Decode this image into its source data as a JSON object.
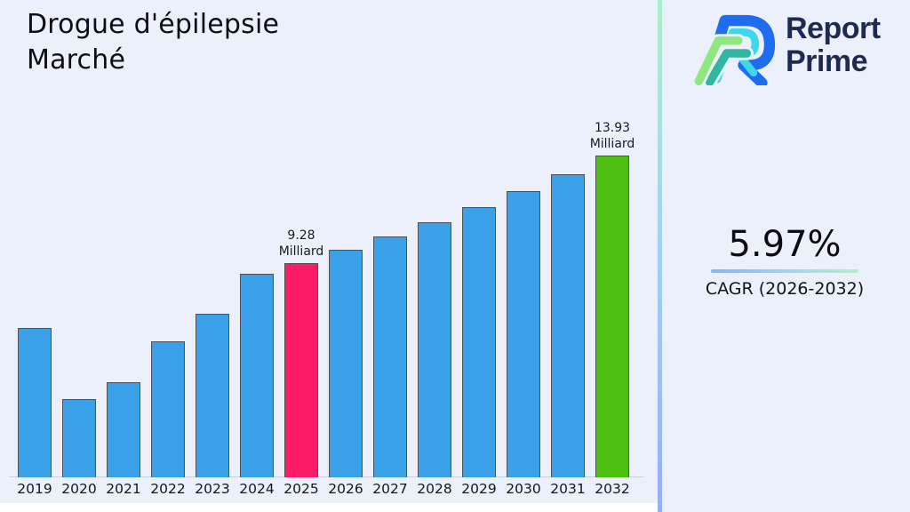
{
  "title": {
    "line1": "Drogue d'épilepsie",
    "line2": "Marché"
  },
  "logo": {
    "brand_line1": "Report",
    "brand_line2": "Prime"
  },
  "cagr": {
    "value": "5.97%",
    "label": "CAGR (2026-2032)"
  },
  "colors": {
    "background": "#ebf0fa",
    "bar_default": "#3aa0e8",
    "bar_highlight_current": "#fc1b66",
    "bar_highlight_final": "#4cbf10",
    "bar_border": "#4e5157",
    "logo_navy": "#1e2a52",
    "logo_blue": "#1f6cf3",
    "logo_cyan": "#3fd8e8",
    "logo_teal": "#2eb8a2",
    "logo_light_green": "#8fe87f",
    "divider_top": "#a9efca",
    "divider_bottom": "#97aef7"
  },
  "chart_data": {
    "type": "bar",
    "title": "Drogue d'épilepsie Marché",
    "xlabel": "",
    "ylabel": "",
    "unit": "Milliard",
    "grid": false,
    "legend": "none",
    "ylim": [
      0,
      13.93
    ],
    "categories": [
      "2019",
      "2020",
      "2021",
      "2022",
      "2023",
      "2024",
      "2025",
      "2026",
      "2027",
      "2028",
      "2029",
      "2030",
      "2031",
      "2032"
    ],
    "values": [
      6.47,
      3.37,
      4.11,
      5.89,
      7.09,
      8.83,
      9.28,
      9.84,
      10.42,
      11.04,
      11.7,
      12.4,
      13.14,
      13.93
    ],
    "highlights": {
      "2025": "bar_highlight_current",
      "2032": "bar_highlight_final"
    },
    "bar_labels": {
      "2025": {
        "value": "9.28",
        "unit": "Milliard"
      },
      "2032": {
        "value": "13.93",
        "unit": "Milliard"
      }
    }
  }
}
